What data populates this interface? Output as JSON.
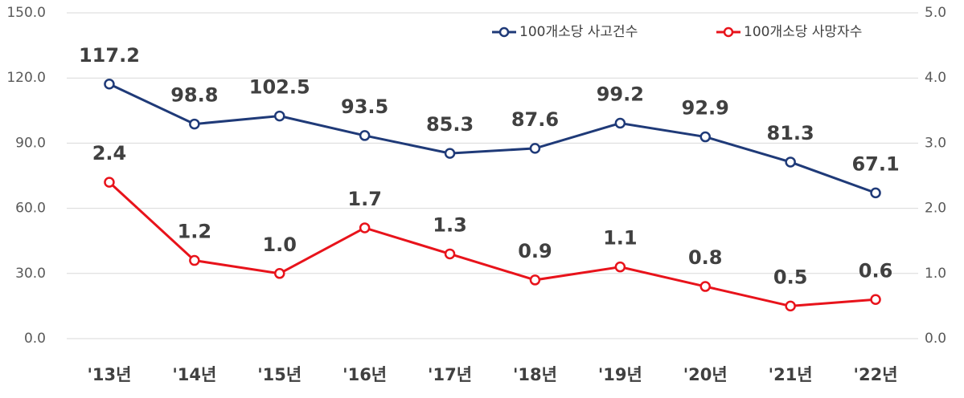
{
  "chart_data": {
    "type": "line",
    "categories": [
      "'13년",
      "'14년",
      "'15년",
      "'16년",
      "'17년",
      "'18년",
      "'19년",
      "'20년",
      "'21년",
      "'22년"
    ],
    "series": [
      {
        "name": "100개소당 사고건수",
        "color": "#1f3a78",
        "values": [
          117.2,
          98.8,
          102.5,
          93.5,
          85.3,
          87.6,
          99.2,
          92.9,
          81.3,
          67.1
        ]
      },
      {
        "name": "100개소당 사망자수",
        "color": "#e8131b",
        "axis": "y2",
        "values": [
          2.4,
          1.2,
          1.0,
          1.7,
          1.3,
          0.9,
          1.1,
          0.8,
          0.5,
          0.6
        ],
        "value_labels": [
          "2.4",
          "1.2",
          "1.0",
          "1.7",
          "1.3",
          "0.9",
          "1.1",
          "0.8",
          "0.5",
          "0.6"
        ]
      }
    ],
    "ylim": [
      0,
      150
    ],
    "yticks": [
      {
        "value": 0,
        "label": "0.0"
      },
      {
        "value": 30,
        "label": "30.0"
      },
      {
        "value": 60,
        "label": "60.0"
      },
      {
        "value": 90,
        "label": "90.0"
      },
      {
        "value": 120,
        "label": "120.0"
      },
      {
        "value": 150,
        "label": "150.0"
      }
    ],
    "y2lim": [
      0,
      5
    ],
    "y2ticks": [
      {
        "value": 0,
        "label": "0.0"
      },
      {
        "value": 1,
        "label": "1.0"
      },
      {
        "value": 2,
        "label": "2.0"
      },
      {
        "value": 3,
        "label": "3.0"
      },
      {
        "value": 4,
        "label": "4.0"
      },
      {
        "value": 5,
        "label": "5.0"
      }
    ],
    "grid": true,
    "legend": "upper right"
  }
}
